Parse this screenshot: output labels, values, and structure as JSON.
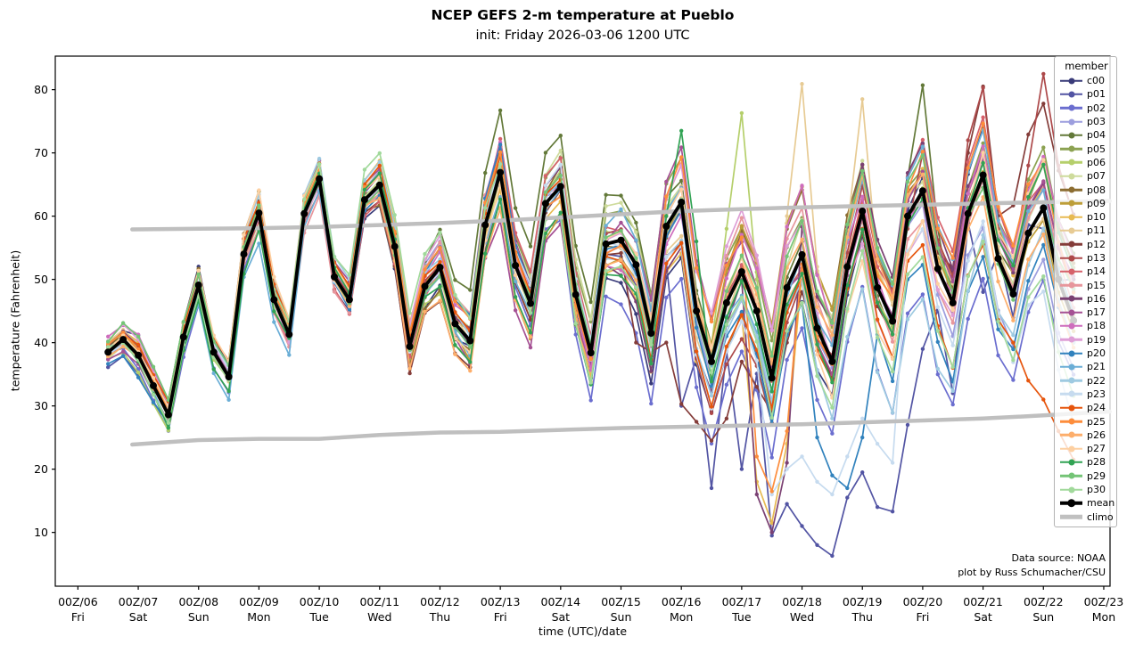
{
  "title": "NCEP GEFS 2-m temperature at Pueblo",
  "subtitle": "init: Friday 2026-03-06 1200 UTC",
  "axes": {
    "xlabel": "time (UTC)/date",
    "ylabel": "temperature (Fahrenheit)",
    "yticks": [
      10,
      20,
      30,
      40,
      50,
      60,
      70,
      80
    ],
    "xticks": [
      {
        "utc": "00Z/06",
        "day": "Fri"
      },
      {
        "utc": "00Z/07",
        "day": "Sat"
      },
      {
        "utc": "00Z/08",
        "day": "Sun"
      },
      {
        "utc": "00Z/09",
        "day": "Mon"
      },
      {
        "utc": "00Z/10",
        "day": "Tue"
      },
      {
        "utc": "00Z/11",
        "day": "Wed"
      },
      {
        "utc": "00Z/12",
        "day": "Thu"
      },
      {
        "utc": "00Z/13",
        "day": "Fri"
      },
      {
        "utc": "00Z/14",
        "day": "Sat"
      },
      {
        "utc": "00Z/15",
        "day": "Sun"
      },
      {
        "utc": "00Z/16",
        "day": "Mon"
      },
      {
        "utc": "00Z/17",
        "day": "Tue"
      },
      {
        "utc": "00Z/18",
        "day": "Wed"
      },
      {
        "utc": "00Z/19",
        "day": "Thu"
      },
      {
        "utc": "00Z/20",
        "day": "Fri"
      },
      {
        "utc": "00Z/21",
        "day": "Sat"
      },
      {
        "utc": "00Z/22",
        "day": "Sun"
      },
      {
        "utc": "00Z/23",
        "day": "Mon"
      }
    ]
  },
  "legend": {
    "title": "member"
  },
  "credits": {
    "line1": "Data source: NOAA",
    "line2": "plot by Russ Schumacher/CSU"
  },
  "chart_data": {
    "type": "line",
    "title": "NCEP GEFS 2-m temperature at Pueblo",
    "xlabel": "time (UTC)/date",
    "ylabel": "temperature (Fahrenheit)",
    "ylim": [
      1.5,
      85.3
    ],
    "xlim_hours_after_00Z06": [
      -9,
      410.5
    ],
    "x_hours": [
      12,
      18,
      24,
      30,
      36,
      42,
      48,
      54,
      60,
      66,
      72,
      78,
      84,
      90,
      96,
      102,
      108,
      114,
      120,
      126,
      132,
      138,
      144,
      150,
      156,
      162,
      168,
      174,
      180,
      186,
      192,
      198,
      204,
      210,
      216,
      222,
      228,
      234,
      240,
      246,
      252,
      258,
      264,
      270,
      276,
      282,
      288,
      294,
      300,
      306,
      312,
      318,
      324,
      330,
      336,
      342,
      348,
      354,
      360,
      366,
      372,
      378,
      384,
      390,
      396
    ],
    "series": [
      {
        "name": "mean",
        "color": "#000000",
        "values": [
          38.5,
          40.5,
          38.0,
          33.2,
          28.6,
          40.9,
          49.1,
          38.5,
          34.6,
          54.0,
          60.5,
          46.8,
          41.3,
          60.4,
          65.9,
          50.4,
          46.8,
          62.6,
          64.9,
          55.2,
          39.4,
          48.9,
          51.9,
          43.0,
          40.3,
          58.6,
          66.9,
          52.2,
          46.2,
          62.0,
          64.7,
          47.6,
          38.4,
          55.6,
          56.2,
          52.3,
          41.5,
          58.4,
          62.2,
          45.0,
          37.0,
          46.3,
          51.2,
          45.0,
          34.4,
          48.7,
          53.9,
          42.3,
          37.0,
          52.0,
          60.8,
          48.7,
          43.4,
          60.0,
          64.0,
          51.7,
          46.3,
          60.4,
          66.5,
          53.3,
          47.7,
          57.3,
          61.3,
          50.0,
          43.5
        ]
      }
    ],
    "climo": {
      "color": "#bfbfbf",
      "days": [
        0.9,
        2,
        3,
        4,
        5,
        6,
        7,
        8,
        9,
        10,
        11,
        12,
        13,
        14,
        15,
        16,
        17.1
      ],
      "upper": [
        57.9,
        58.0,
        58.1,
        58.3,
        58.6,
        58.9,
        59.3,
        59.8,
        60.3,
        60.8,
        61.1,
        61.4,
        61.6,
        61.8,
        62.0,
        62.2,
        62.4
      ],
      "lower": [
        23.9,
        24.6,
        24.8,
        24.8,
        25.4,
        25.8,
        25.9,
        26.2,
        26.5,
        26.7,
        26.9,
        27.1,
        27.4,
        27.7,
        28.0,
        28.5,
        29.1
      ]
    },
    "bias_days": [
      0,
      2,
      4,
      6,
      8,
      10,
      12,
      14,
      16
    ],
    "spread_halfwidth_by_day": [
      1,
      3.5,
      2.5,
      3.5,
      3,
      4,
      6,
      7,
      7,
      8,
      9,
      10,
      11,
      9,
      9,
      9,
      9,
      9
    ],
    "members": [
      {
        "name": "c00",
        "color": "#393b79",
        "bias": [
          0,
          0,
          -0.5,
          -1,
          -2,
          -4,
          -6,
          -2,
          8
        ]
      },
      {
        "name": "p01",
        "color": "#5254a3",
        "bias": [
          0,
          0.5,
          0,
          -1,
          -2,
          -8,
          -18,
          -4,
          0
        ],
        "track": [
          [
            240,
            30
          ],
          [
            252,
            17
          ],
          [
            264,
            20
          ],
          [
            276,
            9.5
          ],
          [
            282,
            14.5
          ],
          [
            288,
            11
          ],
          [
            294,
            8
          ],
          [
            300,
            6.3
          ],
          [
            306,
            15.5
          ],
          [
            312,
            19.5
          ],
          [
            318,
            14
          ],
          [
            324,
            13.3
          ],
          [
            330,
            27
          ],
          [
            336,
            39
          ],
          [
            348,
            32
          ],
          [
            360,
            48
          ],
          [
            372,
            44
          ],
          [
            384,
            58
          ],
          [
            396,
            50
          ]
        ]
      },
      {
        "name": "p02",
        "color": "#6b6ecf",
        "bias": [
          0,
          0,
          0.5,
          -0.5,
          -1,
          -3,
          -7,
          -10,
          -5
        ]
      },
      {
        "name": "p03",
        "color": "#9c9ede",
        "bias": [
          0,
          0,
          0,
          0,
          -1,
          -2,
          -5,
          -8,
          -7
        ]
      },
      {
        "name": "p04",
        "color": "#637939",
        "bias": [
          0,
          0,
          0.5,
          1,
          2,
          3,
          5,
          7,
          5
        ],
        "track": [
          [
            330,
            66
          ],
          [
            336,
            80.7
          ],
          [
            342,
            58
          ]
        ]
      },
      {
        "name": "p05",
        "color": "#8ca252",
        "bias": [
          0,
          0,
          0.5,
          1,
          1,
          2,
          4,
          5,
          5
        ]
      },
      {
        "name": "p06",
        "color": "#b5cf6b",
        "bias": [
          0,
          0,
          0,
          1,
          2,
          6,
          4,
          2,
          2
        ],
        "track": [
          [
            258,
            58
          ],
          [
            264,
            76.3
          ],
          [
            270,
            50
          ]
        ]
      },
      {
        "name": "p07",
        "color": "#cedb9c",
        "bias": [
          0,
          0.5,
          0,
          0.5,
          1,
          3,
          6,
          6,
          3
        ]
      },
      {
        "name": "p08",
        "color": "#8c6d31",
        "bias": [
          0,
          0,
          0,
          0,
          1,
          2,
          3,
          4,
          3
        ]
      },
      {
        "name": "p09",
        "color": "#bd9e39",
        "bias": [
          0,
          0,
          0,
          0.5,
          1,
          2,
          3,
          3,
          2
        ]
      },
      {
        "name": "p10",
        "color": "#e7ba52",
        "bias": [
          0,
          0,
          0,
          -0.5,
          0,
          -2,
          1,
          3,
          2
        ],
        "track": [
          [
            270,
            18
          ],
          [
            276,
            11.5
          ],
          [
            282,
            24
          ]
        ]
      },
      {
        "name": "p11",
        "color": "#e7cb94",
        "bias": [
          0,
          0,
          -1,
          0.5,
          2,
          4,
          8,
          6,
          4
        ],
        "track": [
          [
            282,
            60
          ],
          [
            288,
            80.9
          ],
          [
            294,
            52
          ],
          [
            306,
            58
          ],
          [
            312,
            78.5
          ],
          [
            318,
            52
          ]
        ]
      },
      {
        "name": "p12",
        "color": "#843c39",
        "bias": [
          0,
          0.5,
          0,
          0,
          -2,
          -6,
          -2,
          5,
          9
        ],
        "track": [
          [
            222,
            40
          ],
          [
            228,
            38.5
          ],
          [
            234,
            40
          ],
          [
            240,
            30.3
          ],
          [
            246,
            27.5
          ],
          [
            252,
            24.5
          ],
          [
            258,
            28
          ],
          [
            264,
            37
          ],
          [
            270,
            33
          ],
          [
            276,
            29
          ],
          [
            282,
            40
          ],
          [
            288,
            48
          ],
          [
            354,
            70
          ],
          [
            360,
            80.5
          ],
          [
            366,
            60
          ]
        ]
      },
      {
        "name": "p13",
        "color": "#ad494a",
        "bias": [
          0,
          0,
          0,
          0,
          -2,
          -3,
          0,
          6,
          9
        ],
        "track": [
          [
            330,
            58
          ],
          [
            336,
            70
          ],
          [
            354,
            72
          ],
          [
            360,
            80.3
          ],
          [
            366,
            58
          ],
          [
            372,
            52
          ],
          [
            378,
            68
          ],
          [
            384,
            82.5
          ],
          [
            390,
            68
          ],
          [
            396,
            60
          ]
        ]
      },
      {
        "name": "p14",
        "color": "#d6616b",
        "bias": [
          0,
          0,
          0,
          0,
          0,
          1,
          2,
          3,
          4
        ]
      },
      {
        "name": "p15",
        "color": "#e7969c",
        "bias": [
          0,
          0,
          0,
          0.5,
          1,
          1,
          2,
          2,
          1
        ]
      },
      {
        "name": "p16",
        "color": "#7b4173",
        "bias": [
          0,
          0.5,
          0,
          0,
          -1,
          -3,
          -6,
          -2,
          1
        ],
        "track": [
          [
            270,
            16
          ],
          [
            276,
            10
          ],
          [
            282,
            21
          ]
        ]
      },
      {
        "name": "p17",
        "color": "#a55194",
        "bias": [
          0,
          0,
          0,
          0,
          0.5,
          2,
          4,
          5,
          3
        ]
      },
      {
        "name": "p18",
        "color": "#ce6dbd",
        "bias": [
          0,
          0,
          0,
          0.5,
          1,
          2,
          3,
          2,
          2
        ]
      },
      {
        "name": "p19",
        "color": "#de9ed6",
        "bias": [
          0,
          0,
          0,
          0,
          0.5,
          1,
          2,
          1,
          1
        ]
      },
      {
        "name": "p20",
        "color": "#3182bd",
        "bias": [
          0,
          0.5,
          0,
          0,
          -1,
          -3,
          -6,
          -6,
          -2
        ],
        "track": [
          [
            294,
            25
          ],
          [
            300,
            19
          ],
          [
            306,
            17
          ],
          [
            312,
            25
          ]
        ]
      },
      {
        "name": "p21",
        "color": "#6baed6",
        "bias": [
          0,
          -1,
          0,
          0,
          0.5,
          -1,
          -3,
          -2,
          3
        ]
      },
      {
        "name": "p22",
        "color": "#9ecae1",
        "bias": [
          0,
          0,
          0,
          -0.5,
          -1,
          -2,
          -6,
          -8,
          -6
        ]
      },
      {
        "name": "p23",
        "color": "#c6dbef",
        "bias": [
          0,
          0,
          0,
          -0.5,
          -1,
          -4,
          -10,
          -11,
          -8
        ],
        "track": [
          [
            276,
            16
          ],
          [
            282,
            20
          ],
          [
            288,
            22
          ],
          [
            294,
            18
          ],
          [
            300,
            16
          ],
          [
            306,
            22
          ],
          [
            312,
            28
          ],
          [
            318,
            24
          ],
          [
            324,
            21
          ]
        ]
      },
      {
        "name": "p24",
        "color": "#e6550d",
        "bias": [
          0,
          0,
          0.5,
          0,
          0,
          1,
          2,
          -1,
          -10
        ],
        "track": [
          [
            372,
            40
          ],
          [
            378,
            34
          ],
          [
            384,
            31
          ],
          [
            390,
            26
          ],
          [
            396,
            21.5
          ]
        ]
      },
      {
        "name": "p25",
        "color": "#fd8d3c",
        "bias": [
          0,
          0,
          0,
          0.5,
          0,
          1,
          -4,
          -1,
          2
        ],
        "track": [
          [
            270,
            22
          ],
          [
            276,
            16.5
          ],
          [
            282,
            26
          ]
        ]
      },
      {
        "name": "p26",
        "color": "#fdae6b",
        "bias": [
          0,
          0,
          0,
          0,
          1,
          1,
          2,
          3,
          3
        ]
      },
      {
        "name": "p27",
        "color": "#fdd0a2",
        "bias": [
          0,
          0,
          0,
          0,
          1,
          2,
          4,
          3,
          2
        ]
      },
      {
        "name": "p28",
        "color": "#31a354",
        "bias": [
          0,
          0,
          0,
          0.5,
          0,
          2,
          3,
          4,
          2
        ],
        "track": [
          [
            234,
            60
          ],
          [
            240,
            73.5
          ],
          [
            246,
            56
          ]
        ]
      },
      {
        "name": "p29",
        "color": "#74c476",
        "bias": [
          0,
          0,
          0,
          0,
          1,
          2,
          3,
          2,
          3
        ]
      },
      {
        "name": "p30",
        "color": "#a1d99b",
        "bias": [
          0,
          0,
          0,
          0,
          0.5,
          1,
          -2,
          -4,
          -2
        ]
      }
    ],
    "legend_entries": [
      "c00",
      "p01",
      "p02",
      "p03",
      "p04",
      "p05",
      "p06",
      "p07",
      "p08",
      "p09",
      "p10",
      "p11",
      "p12",
      "p13",
      "p14",
      "p15",
      "p16",
      "p17",
      "p18",
      "p19",
      "p20",
      "p21",
      "p22",
      "p23",
      "p24",
      "p25",
      "p26",
      "p27",
      "p28",
      "p29",
      "p30",
      "mean",
      "climo"
    ],
    "legend_position": "upper right",
    "grid": false
  }
}
